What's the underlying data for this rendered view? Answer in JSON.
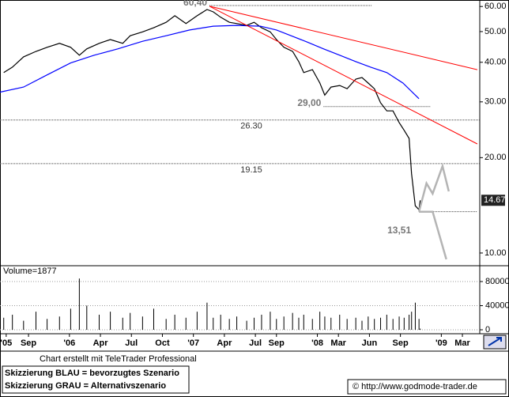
{
  "chart_data": [
    {
      "type": "line",
      "xlim": [
        2005.44,
        2009.31
      ],
      "ylim": [
        9.17,
        62.9
      ],
      "log_scale": true,
      "xticks": [
        {
          "value": 2005.49,
          "label": "'05"
        },
        {
          "value": 2005.67,
          "label": "Sep"
        },
        {
          "value": 2006.0,
          "label": "'06"
        },
        {
          "value": 2006.25,
          "label": "Apr"
        },
        {
          "value": 2006.5,
          "label": "Jul"
        },
        {
          "value": 2006.75,
          "label": "Oct"
        },
        {
          "value": 2007.0,
          "label": "'07"
        },
        {
          "value": 2007.25,
          "label": "Apr"
        },
        {
          "value": 2007.5,
          "label": "Jul"
        },
        {
          "value": 2007.67,
          "label": "Sep"
        },
        {
          "value": 2008.0,
          "label": "'08"
        },
        {
          "value": 2008.17,
          "label": "Mar"
        },
        {
          "value": 2008.42,
          "label": "Jun"
        },
        {
          "value": 2008.67,
          "label": "Sep"
        },
        {
          "value": 2009.0,
          "label": "'09"
        },
        {
          "value": 2009.17,
          "label": "Mar"
        }
      ],
      "yticks": [
        {
          "value": 10,
          "label": "10.00"
        },
        {
          "value": 20,
          "label": "20.00"
        },
        {
          "value": 30,
          "label": "30.00"
        },
        {
          "value": 40,
          "label": "40.00"
        },
        {
          "value": 50,
          "label": "50.00"
        },
        {
          "value": 60,
          "label": "60.00"
        }
      ],
      "last_price": 14.67,
      "series": [
        {
          "color": "#000000",
          "x": [
            2005.47,
            2005.54,
            2005.63,
            2005.73,
            2005.82,
            2005.92,
            2006.01,
            2006.08,
            2006.14,
            2006.24,
            2006.33,
            2006.43,
            2006.49,
            2006.59,
            2006.68,
            2006.78,
            2006.85,
            2006.94,
            2007.03,
            2007.11,
            2007.16,
            2007.22,
            2007.29,
            2007.35,
            2007.43,
            2007.49,
            2007.55,
            2007.62,
            2007.67,
            2007.73,
            2007.8,
            2007.85,
            2007.89,
            2007.96,
            2008.02,
            2008.06,
            2008.11,
            2008.18,
            2008.24,
            2008.31,
            2008.36,
            2008.41,
            2008.46,
            2008.51,
            2008.56,
            2008.61,
            2008.66,
            2008.7,
            2008.74,
            2008.76,
            2008.79,
            2008.82,
            2008.83
          ],
          "values": [
            37.1,
            38.6,
            41.6,
            43.3,
            44.6,
            45.9,
            44.6,
            42.1,
            44.1,
            45.9,
            47.2,
            45.9,
            48.5,
            49.9,
            51.4,
            53.5,
            56.1,
            53.0,
            56.1,
            58.7,
            57.7,
            55.5,
            53.5,
            53.0,
            52.3,
            53.5,
            51.4,
            49.9,
            47.2,
            44.6,
            43.3,
            40.2,
            37.1,
            37.9,
            34.4,
            31.5,
            33.4,
            33.8,
            33.0,
            35.4,
            35.8,
            34.4,
            33.0,
            29.8,
            28.1,
            28.1,
            25.8,
            24.4,
            23.0,
            17.8,
            14.1,
            13.7,
            14.67
          ]
        },
        {
          "color": "#0000ff",
          "x": [
            2005.44,
            2005.63,
            2005.82,
            2006.01,
            2006.2,
            2006.39,
            2006.59,
            2006.78,
            2006.97,
            2007.16,
            2007.35,
            2007.54,
            2007.67,
            2007.8,
            2007.92,
            2008.05,
            2008.18,
            2008.31,
            2008.43,
            2008.56,
            2008.69,
            2008.82
          ],
          "values": [
            32.2,
            33.4,
            36.5,
            39.8,
            42.1,
            44.1,
            46.6,
            48.5,
            50.6,
            52.0,
            52.3,
            52.0,
            50.6,
            48.3,
            46.3,
            44.1,
            42.1,
            40.2,
            38.6,
            37.1,
            34.4,
            30.7
          ]
        },
        {
          "color": "#ff0000",
          "x": [
            2007.13,
            2009.29
          ],
          "values": [
            60.1,
            37.9
          ]
        },
        {
          "color": "#ff0000",
          "x": [
            2007.13,
            2009.29
          ],
          "values": [
            60.1,
            22.1
          ]
        },
        {
          "color": "#b4b4b4",
          "x": [
            2008.82,
            2008.88,
            2008.93,
            2009.01,
            2009.06
          ],
          "values": [
            13.5,
            16.6,
            15.4,
            18.8,
            15.65
          ]
        },
        {
          "color": "#b4b4b4",
          "x": [
            2008.82,
            2008.93,
            2009.04
          ],
          "values": [
            13.5,
            13.5,
            9.55
          ]
        }
      ],
      "levels": [
        {
          "value": 60.4,
          "label": "60,40",
          "from": 2007.13,
          "to": 2008.44
        },
        {
          "value": 29.0,
          "label": "29,00",
          "from": 2008.05,
          "to": 2008.91
        },
        {
          "value": 26.3,
          "label": "26.30"
        },
        {
          "value": 19.15,
          "label": "19.15"
        },
        {
          "value": 13.51,
          "label": "13,51",
          "from": 2008.82,
          "to": 2009.29
        }
      ]
    },
    {
      "type": "bar",
      "title": "Volume=1877",
      "color": "#000000",
      "ylim": [
        0,
        101000
      ],
      "yticks": [
        0,
        40000,
        80000
      ],
      "x": [
        2005.47,
        2005.54,
        2005.63,
        2005.73,
        2005.82,
        2005.92,
        2006.01,
        2006.08,
        2006.14,
        2006.24,
        2006.33,
        2006.43,
        2006.49,
        2006.59,
        2006.68,
        2006.78,
        2006.85,
        2006.94,
        2007.03,
        2007.11,
        2007.16,
        2007.22,
        2007.29,
        2007.35,
        2007.43,
        2007.49,
        2007.55,
        2007.62,
        2007.67,
        2007.73,
        2007.8,
        2007.85,
        2007.89,
        2007.96,
        2008.02,
        2008.06,
        2008.11,
        2008.18,
        2008.24,
        2008.31,
        2008.36,
        2008.41,
        2008.46,
        2008.51,
        2008.56,
        2008.61,
        2008.66,
        2008.7,
        2008.74,
        2008.76,
        2008.79,
        2008.82,
        2008.83
      ],
      "values": [
        20000,
        25000,
        15000,
        30000,
        18000,
        22000,
        35000,
        85000,
        40000,
        25000,
        30000,
        20000,
        28000,
        22000,
        35000,
        18000,
        25000,
        20000,
        30000,
        45000,
        20000,
        25000,
        18000,
        22000,
        15000,
        20000,
        25000,
        30000,
        18000,
        22000,
        28000,
        20000,
        25000,
        18000,
        30000,
        22000,
        20000,
        25000,
        18000,
        20000,
        15000,
        22000,
        18000,
        20000,
        25000,
        18000,
        22000,
        20000,
        25000,
        30000,
        45000,
        18000,
        1877
      ]
    }
  ],
  "footer": {
    "credit": "Chart erstellt mit TeleTrader Professional",
    "legend": [
      "Skizzierung BLAU = bevorzugtes Szenario",
      "Skizzierung GRAU = Alternativszenario"
    ],
    "copyright": "© http://www.godmode-trader.de"
  }
}
